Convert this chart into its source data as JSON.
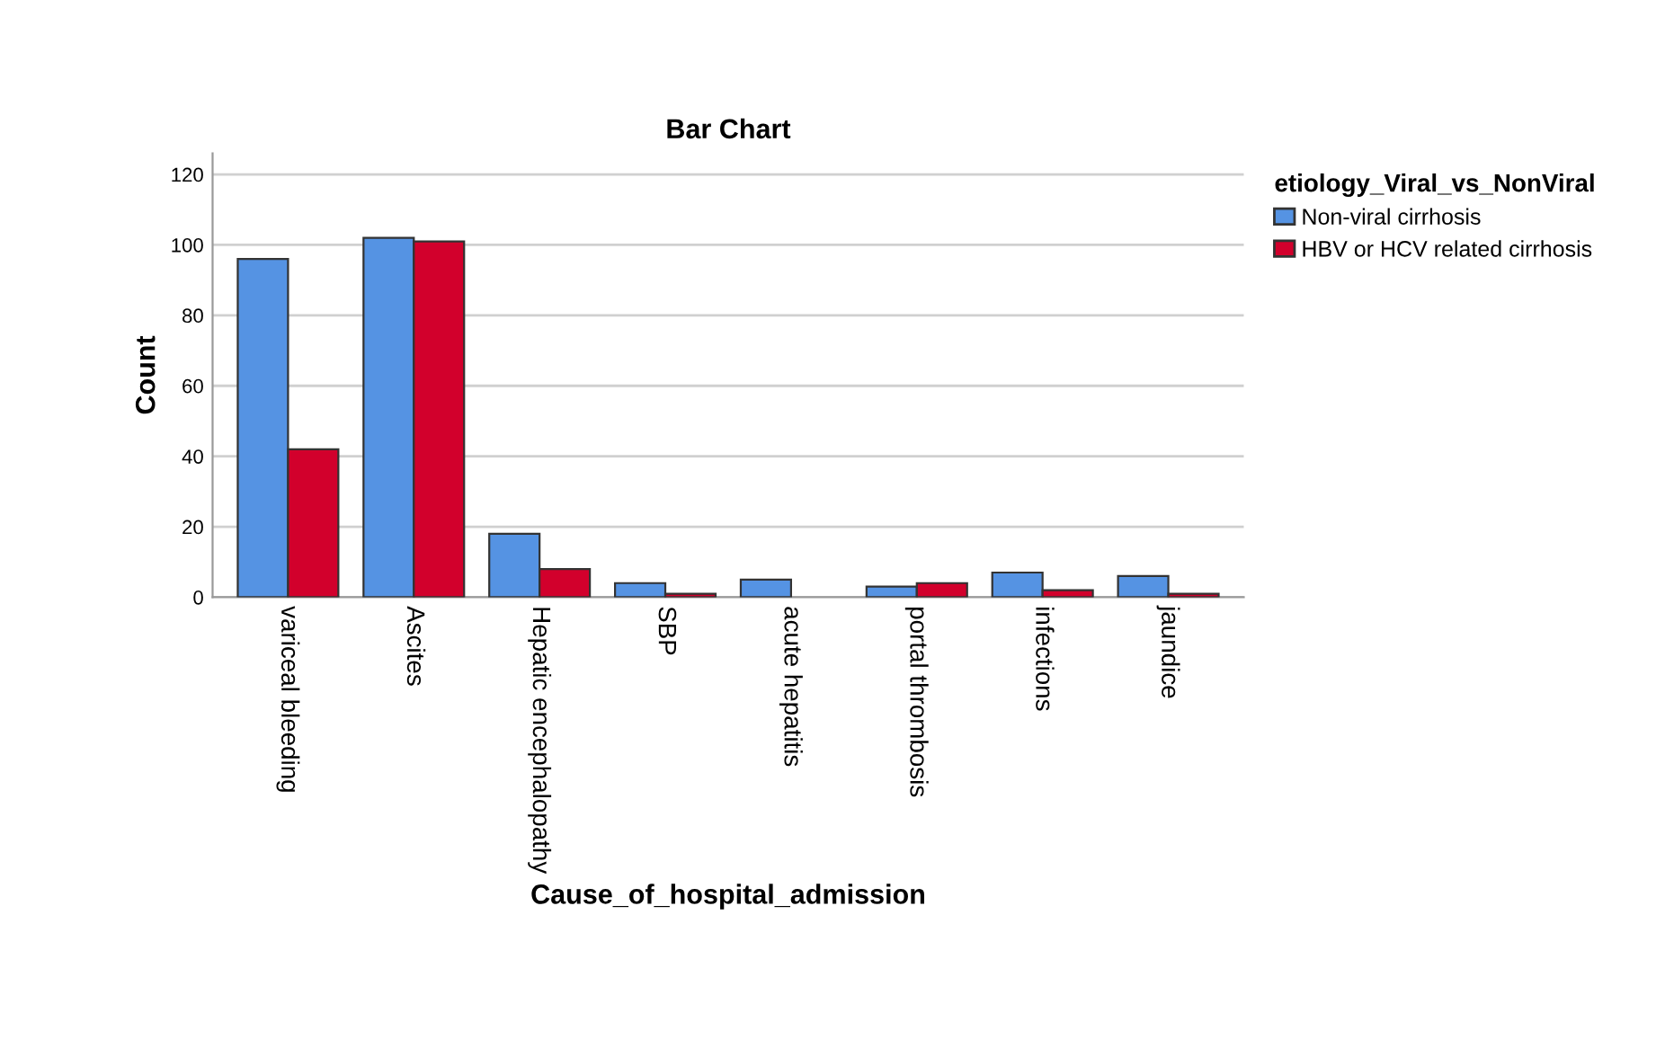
{
  "chart_data": {
    "type": "bar",
    "title": "Bar Chart",
    "xlabel": "Cause_of_hospital_admission",
    "ylabel": "Count",
    "legend_title": "etiology_Viral_vs_NonViral",
    "categories": [
      "variceal bleeding",
      "Ascites",
      "Hepatic encephalopathy",
      "SBP",
      "acute hepatitis",
      "portal thrombosis",
      "infections",
      "jaundice"
    ],
    "series": [
      {
        "name": "Non-viral cirrhosis",
        "color": "#5593e3",
        "values": [
          96,
          102,
          18,
          4,
          5,
          3,
          7,
          6
        ]
      },
      {
        "name": "HBV or HCV related cirrhosis",
        "color": "#d2002c",
        "values": [
          42,
          101,
          8,
          1,
          null,
          4,
          2,
          1
        ]
      }
    ],
    "ylim": [
      0,
      126
    ],
    "yticks": [
      0,
      20,
      40,
      60,
      80,
      100,
      120
    ],
    "grid": "y",
    "legend": "top right"
  }
}
